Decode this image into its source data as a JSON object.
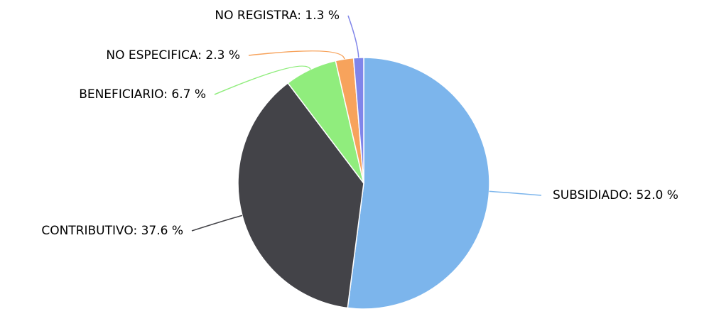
{
  "chart_data": {
    "type": "pie",
    "categories": [
      "SUBSIDIADO",
      "CONTRIBUTIVO",
      "BENEFICIARIO",
      "NO ESPECIFICA",
      "NO REGISTRA"
    ],
    "values": [
      52.0,
      37.6,
      6.7,
      2.3,
      1.3
    ],
    "value_labels": [
      "52.0 %",
      "37.6 %",
      "6.7 %",
      "2.3 %",
      "1.3 %"
    ],
    "colors": [
      "#7cb5ec",
      "#434348",
      "#90ed7d",
      "#f7a35c",
      "#8085e9"
    ]
  }
}
